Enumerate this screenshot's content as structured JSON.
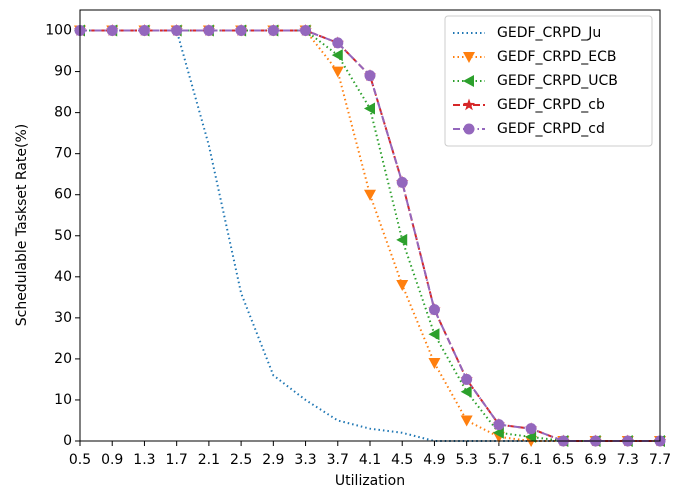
{
  "chart_data": {
    "type": "line",
    "xlabel": "Utilization",
    "ylabel": "Schedulable Taskset Rate(%)",
    "x": [
      0.5,
      0.9,
      1.3,
      1.7,
      2.1,
      2.5,
      2.9,
      3.3,
      3.7,
      4.1,
      4.5,
      4.9,
      5.3,
      5.7,
      6.1,
      6.5,
      6.9,
      7.3,
      7.7
    ],
    "xlim": [
      0.5,
      7.7
    ],
    "xticks": [
      0.5,
      0.9,
      1.3,
      1.7,
      2.1,
      2.5,
      2.9,
      3.3,
      3.7,
      4.1,
      4.5,
      4.9,
      5.3,
      5.7,
      6.1,
      6.5,
      6.9,
      7.3,
      7.7
    ],
    "ylim": [
      0,
      105
    ],
    "yticks": [
      0,
      10,
      20,
      30,
      40,
      50,
      60,
      70,
      80,
      90,
      100
    ],
    "legend": "upper right",
    "series": [
      {
        "name": "GEDF_CRPD_Ju",
        "color": "#1f77b4",
        "linestyle": "dotted",
        "marker": "none",
        "values": [
          100,
          100,
          100,
          100,
          72,
          36,
          16,
          10,
          5,
          3,
          2,
          0,
          0,
          0,
          0,
          0,
          0,
          0,
          0
        ]
      },
      {
        "name": "GEDF_CRPD_ECB",
        "color": "#ff7f0e",
        "linestyle": "dotted",
        "marker": "v",
        "values": [
          100,
          100,
          100,
          100,
          100,
          100,
          100,
          100,
          90,
          60,
          38,
          19,
          5,
          1,
          0,
          0,
          0,
          0,
          0
        ]
      },
      {
        "name": "GEDF_CRPD_UCB",
        "color": "#2ca02c",
        "linestyle": "dotted",
        "marker": "<",
        "values": [
          100,
          100,
          100,
          100,
          100,
          100,
          100,
          100,
          94,
          81,
          49,
          26,
          12,
          2,
          1,
          0,
          0,
          0,
          0
        ]
      },
      {
        "name": "GEDF_CRPD_cb",
        "color": "#d62728",
        "linestyle": "dashed",
        "marker": "*",
        "values": [
          100,
          100,
          100,
          100,
          100,
          100,
          100,
          100,
          97,
          89,
          63,
          32,
          15,
          4,
          3,
          0,
          0,
          0,
          0
        ]
      },
      {
        "name": "GEDF_CRPD_cd",
        "color": "#9467bd",
        "linestyle": "dashdot",
        "marker": "o",
        "values": [
          100,
          100,
          100,
          100,
          100,
          100,
          100,
          100,
          97,
          89,
          63,
          32,
          15,
          4,
          3,
          0,
          0,
          0,
          0
        ]
      }
    ]
  }
}
